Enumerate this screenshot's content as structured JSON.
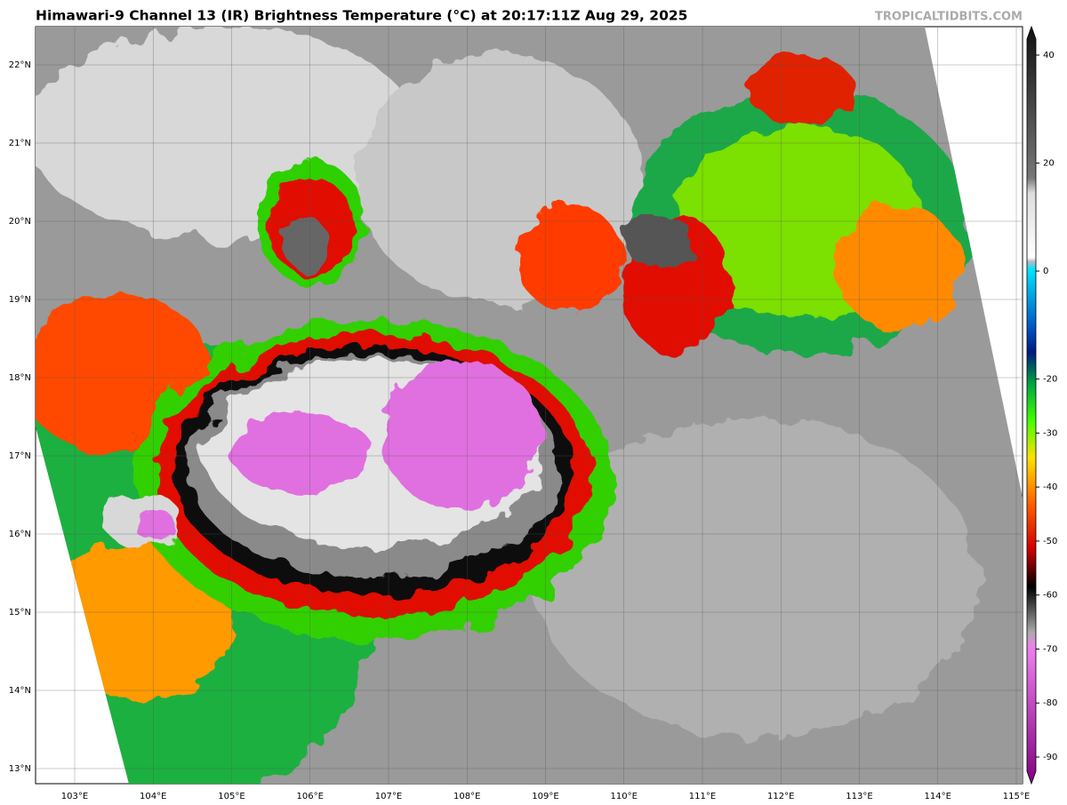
{
  "header": {
    "title": "Himawari-9 Channel 13 (IR) Brightness Temperature (°C) at 20:17:11Z Aug 29, 2025",
    "watermark": "TROPICALTIDBITS.COM"
  },
  "map": {
    "lon_ticks": [
      {
        "value": 103,
        "label": "103°E"
      },
      {
        "value": 104,
        "label": "104°E"
      },
      {
        "value": 105,
        "label": "105°E"
      },
      {
        "value": 106,
        "label": "106°E"
      },
      {
        "value": 107,
        "label": "107°E"
      },
      {
        "value": 108,
        "label": "108°E"
      },
      {
        "value": 109,
        "label": "109°E"
      },
      {
        "value": 110,
        "label": "110°E"
      },
      {
        "value": 111,
        "label": "111°E"
      },
      {
        "value": 112,
        "label": "112°E"
      },
      {
        "value": 113,
        "label": "113°E"
      },
      {
        "value": 114,
        "label": "114°E"
      },
      {
        "value": 115,
        "label": "115°E"
      }
    ],
    "lat_ticks": [
      {
        "value": 22,
        "label": "22°N"
      },
      {
        "value": 21,
        "label": "21°N"
      },
      {
        "value": 20,
        "label": "20°N"
      },
      {
        "value": 19,
        "label": "19°N"
      },
      {
        "value": 18,
        "label": "18°N"
      },
      {
        "value": 17,
        "label": "17°N"
      },
      {
        "value": 16,
        "label": "16°N"
      },
      {
        "value": 15,
        "label": "15°N"
      },
      {
        "value": 14,
        "label": "14°N"
      },
      {
        "value": 13,
        "label": "13°N"
      }
    ]
  },
  "colorbar": {
    "ticks": [
      40,
      20,
      0,
      -20,
      -30,
      -40,
      -50,
      -60,
      -70,
      -80,
      -90
    ]
  }
}
